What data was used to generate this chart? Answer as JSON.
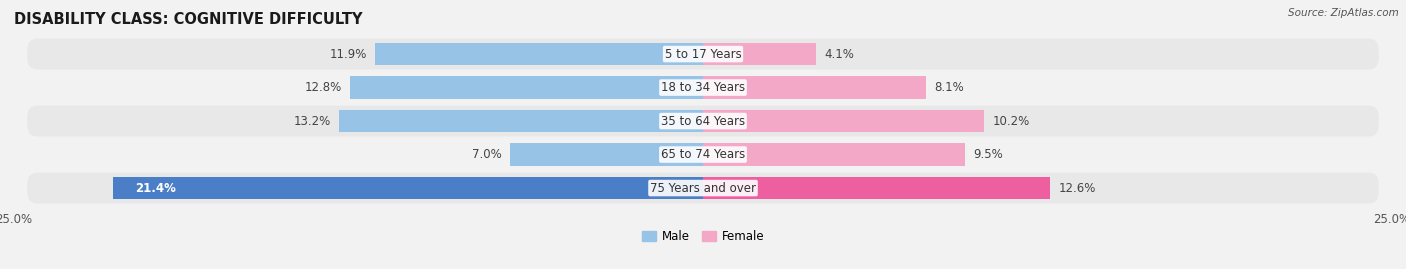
{
  "title": "DISABILITY CLASS: COGNITIVE DIFFICULTY",
  "source": "Source: ZipAtlas.com",
  "categories": [
    "5 to 17 Years",
    "18 to 34 Years",
    "35 to 64 Years",
    "65 to 74 Years",
    "75 Years and over"
  ],
  "male_values": [
    11.9,
    12.8,
    13.2,
    7.0,
    21.4
  ],
  "female_values": [
    4.1,
    8.1,
    10.2,
    9.5,
    12.6
  ],
  "male_color": "#96C3E6",
  "male_color_highlight": "#4A7EC7",
  "female_color": "#F4A8C8",
  "female_color_highlight": "#EE5FA0",
  "axis_max": 25.0,
  "bg_color": "#f2f2f2",
  "row_colors": [
    "#e8e8e8",
    "#f2f2f2"
  ],
  "title_fontsize": 10.5,
  "label_fontsize": 8.5,
  "tick_fontsize": 8.5
}
